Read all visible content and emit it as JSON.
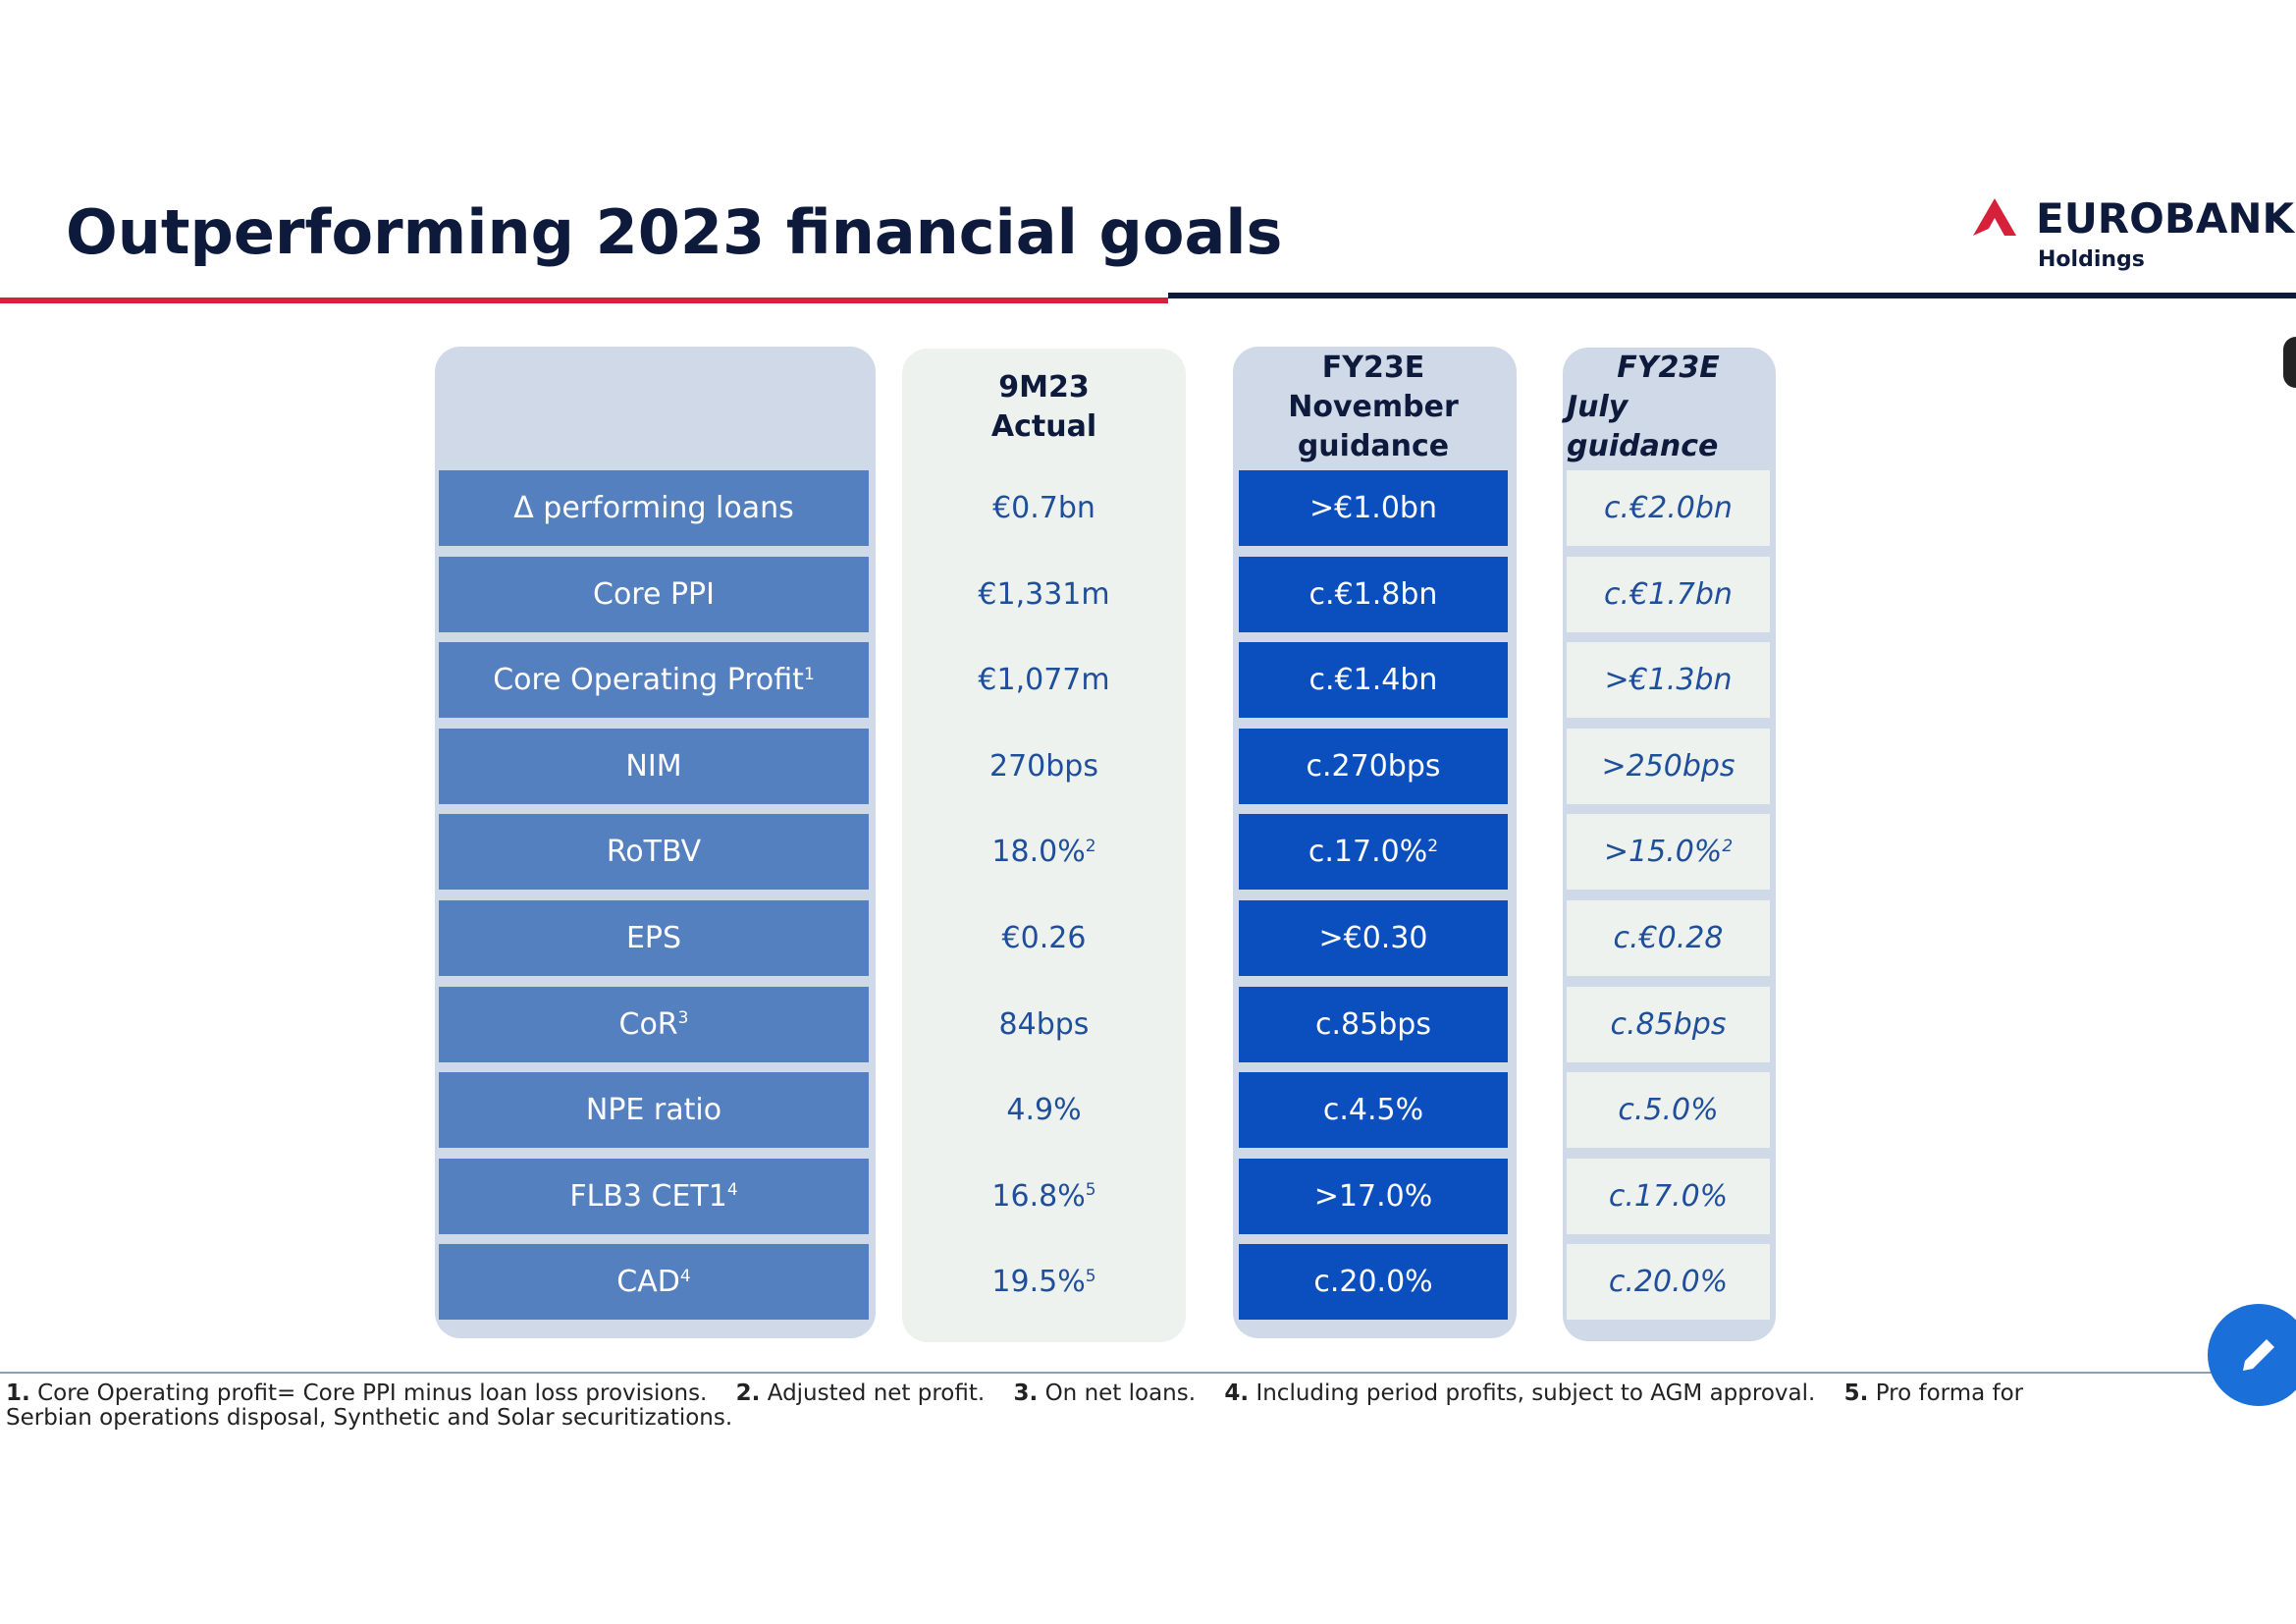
{
  "header": {
    "title": "Outperforming 2023 financial goals",
    "logo": {
      "name": "EUROBANK",
      "sub": "Holdings"
    }
  },
  "table": {
    "headers": [
      {
        "lines": [
          "9M23",
          "Actual"
        ]
      },
      {
        "lines": [
          "FY23E",
          "November",
          "guidance"
        ]
      },
      {
        "lines": [
          "FY23E",
          "July guidance"
        ]
      }
    ],
    "rows": [
      [
        {
          "text": "Δ performing loans"
        },
        {
          "text": "€0.7bn"
        },
        {
          "text": ">€1.0bn"
        },
        {
          "text": "c.€2.0bn"
        }
      ],
      [
        {
          "text": "Core PPI"
        },
        {
          "text": "€1,331m"
        },
        {
          "text": "c.€1.8bn"
        },
        {
          "text": "c.€1.7bn"
        }
      ],
      [
        {
          "text": "Core Operating Profit",
          "sup": "1"
        },
        {
          "text": "€1,077m"
        },
        {
          "text": "c.€1.4bn"
        },
        {
          "text": ">€1.3bn"
        }
      ],
      [
        {
          "text": "NIM"
        },
        {
          "text": "270bps"
        },
        {
          "text": "c.270bps"
        },
        {
          "text": ">250bps"
        }
      ],
      [
        {
          "text": "RoTBV"
        },
        {
          "text": "18.0%",
          "sup": "2"
        },
        {
          "text": "c.17.0%",
          "sup": "2"
        },
        {
          "text": ">15.0%",
          "sup": "2"
        }
      ],
      [
        {
          "text": "EPS"
        },
        {
          "text": "€0.26"
        },
        {
          "text": ">€0.30"
        },
        {
          "text": "c.€0.28"
        }
      ],
      [
        {
          "text": "CoR",
          "sup": "3"
        },
        {
          "text": "84bps"
        },
        {
          "text": "c.85bps"
        },
        {
          "text": "c.85bps"
        }
      ],
      [
        {
          "text": "NPE ratio"
        },
        {
          "text": "4.9%"
        },
        {
          "text": "c.4.5%"
        },
        {
          "text": "c.5.0%"
        }
      ],
      [
        {
          "text": "FLB3 CET1",
          "sup": "4"
        },
        {
          "text": "16.8%",
          "sup": "5"
        },
        {
          "text": ">17.0%"
        },
        {
          "text": "c.17.0%"
        }
      ],
      [
        {
          "text": "CAD",
          "sup": "4"
        },
        {
          "text": "19.5%",
          "sup": "5"
        },
        {
          "text": "c.20.0%"
        },
        {
          "text": "c.20.0%"
        }
      ]
    ]
  },
  "footnotes": [
    {
      "num": "1.",
      "text": "Core Operating profit= Core PPI minus loan loss provisions."
    },
    {
      "num": "2.",
      "text": "Adjusted net profit."
    },
    {
      "num": "3.",
      "text": "On net loans."
    },
    {
      "num": "4.",
      "text": "Including period profits, subject to AGM approval."
    },
    {
      "num": "5.",
      "text": "Pro forma for Serbian operations disposal, Synthetic and Solar securitizations."
    }
  ]
}
